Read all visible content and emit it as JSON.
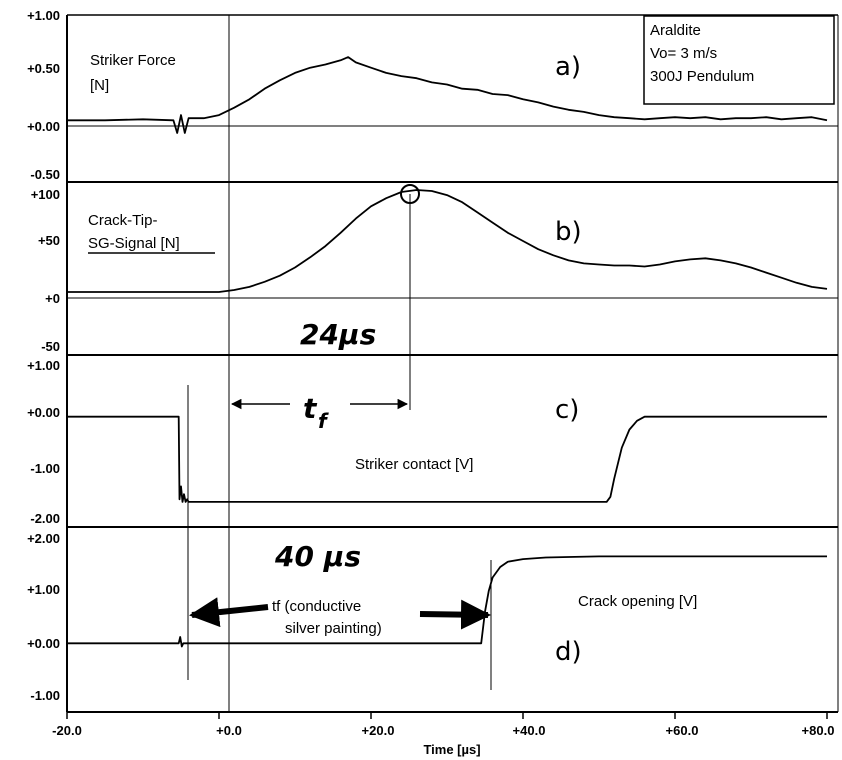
{
  "chart_data": [
    {
      "panel": "a)",
      "type": "line",
      "label_lines": [
        "Striker Force",
        "[N]"
      ],
      "yticks": [
        "+1.00",
        "+0.50",
        "+0.00",
        "-0.50"
      ],
      "ylim": [
        -0.5,
        1.0
      ],
      "xlim": [
        -20,
        80
      ],
      "legend_box": [
        "Araldite",
        "Vo= 3 m/s",
        "300J Pendulum"
      ],
      "series": [
        {
          "x": [
            -20,
            -15,
            -10,
            -6,
            -5.5,
            -5,
            -4.5,
            -4,
            -2,
            0,
            2,
            4,
            6,
            8,
            10,
            12,
            14,
            16,
            17,
            18,
            20,
            22,
            24,
            26,
            28,
            30,
            32,
            34,
            36,
            38,
            40,
            42,
            44,
            46,
            48,
            50,
            52,
            54,
            56,
            58,
            60,
            62,
            64,
            66,
            68,
            70,
            72,
            74,
            76,
            78,
            80
          ],
          "y": [
            0.0,
            0.0,
            0.01,
            0.0,
            -0.12,
            0.05,
            -0.12,
            0.02,
            0.02,
            0.05,
            0.12,
            0.2,
            0.3,
            0.38,
            0.45,
            0.5,
            0.53,
            0.57,
            0.6,
            0.55,
            0.5,
            0.45,
            0.42,
            0.4,
            0.36,
            0.34,
            0.3,
            0.29,
            0.25,
            0.24,
            0.2,
            0.17,
            0.13,
            0.1,
            0.08,
            0.05,
            0.03,
            0.02,
            0.01,
            0.02,
            0.03,
            0.02,
            0.03,
            0.01,
            0.02,
            0.02,
            0.03,
            0.01,
            0.02,
            0.03,
            0.0
          ]
        }
      ]
    },
    {
      "panel": "b)",
      "type": "line",
      "label_lines": [
        "Crack-Tip-",
        "SG-Signal [N]"
      ],
      "yticks": [
        "+100",
        "+50",
        "+0",
        "-50"
      ],
      "ylim": [
        -50,
        100
      ],
      "xlim": [
        -20,
        80
      ],
      "series": [
        {
          "x": [
            -20,
            -10,
            -2,
            0,
            2,
            4,
            6,
            8,
            10,
            12,
            14,
            16,
            18,
            20,
            22,
            24,
            26,
            28,
            30,
            32,
            34,
            36,
            38,
            40,
            42,
            44,
            46,
            48,
            50,
            52,
            54,
            56,
            58,
            60,
            62,
            64,
            66,
            68,
            70,
            72,
            74,
            76,
            78,
            80
          ],
          "y": [
            0,
            0,
            0,
            0,
            2,
            5,
            10,
            16,
            24,
            34,
            45,
            58,
            72,
            84,
            92,
            98,
            100,
            99,
            95,
            88,
            78,
            68,
            58,
            50,
            42,
            36,
            31,
            28,
            27,
            26,
            26,
            25,
            27,
            30,
            32,
            33,
            31,
            28,
            24,
            19,
            14,
            9,
            5,
            3
          ]
        }
      ]
    },
    {
      "panel": "c)",
      "type": "line",
      "label": "Striker contact  [V]",
      "yticks": [
        "+1.00",
        "+0.00",
        "-1.00",
        "-2.00"
      ],
      "ylim": [
        -2.0,
        1.0
      ],
      "xlim": [
        -20,
        80
      ],
      "series": [
        {
          "x": [
            -20,
            -5.3,
            -5.2,
            -5.0,
            -4.8,
            -4.6,
            -4.4,
            -4.2,
            -4.0,
            51.0,
            51.5,
            52.0,
            53.0,
            54.0,
            55.0,
            56.0,
            80
          ],
          "y": [
            0,
            0,
            -1.6,
            -1.35,
            -1.65,
            -1.5,
            -1.65,
            -1.6,
            -1.65,
            -1.65,
            -1.55,
            -1.2,
            -0.6,
            -0.25,
            -0.08,
            0.0,
            0.0
          ]
        }
      ]
    },
    {
      "panel": "d)",
      "type": "line",
      "label": "Crack opening  [V]",
      "yticks": [
        "+2.00",
        "+1.00",
        "+0.00",
        "-1.00"
      ],
      "ylim": [
        -1.0,
        2.0
      ],
      "xlim": [
        -20,
        80
      ],
      "xticks": [
        "-20.0",
        "+0.0",
        "+20.0",
        "+40.0",
        "+60.0",
        "+80.0"
      ],
      "xlabel": "Time [µs]",
      "series": [
        {
          "x": [
            -20,
            -5.3,
            -5.1,
            -4.9,
            -4.7,
            34.5,
            35.0,
            35.5,
            36.0,
            37.0,
            38.0,
            40.0,
            43.0,
            46.0,
            50.0,
            80
          ],
          "y": [
            0,
            0,
            0.12,
            -0.06,
            0,
            0,
            0.6,
            1.0,
            1.25,
            1.45,
            1.55,
            1.6,
            1.63,
            1.64,
            1.65,
            1.65
          ]
        }
      ]
    }
  ],
  "annotations": {
    "tf_24": "24µs",
    "tf_symbol": "t",
    "tf_sub": "f",
    "tf_40": "40 µs",
    "tf_conductive_1": "tf (conductive",
    "tf_conductive_2": "silver painting)"
  },
  "colors": {
    "line": "#000000",
    "background": "#ffffff"
  }
}
